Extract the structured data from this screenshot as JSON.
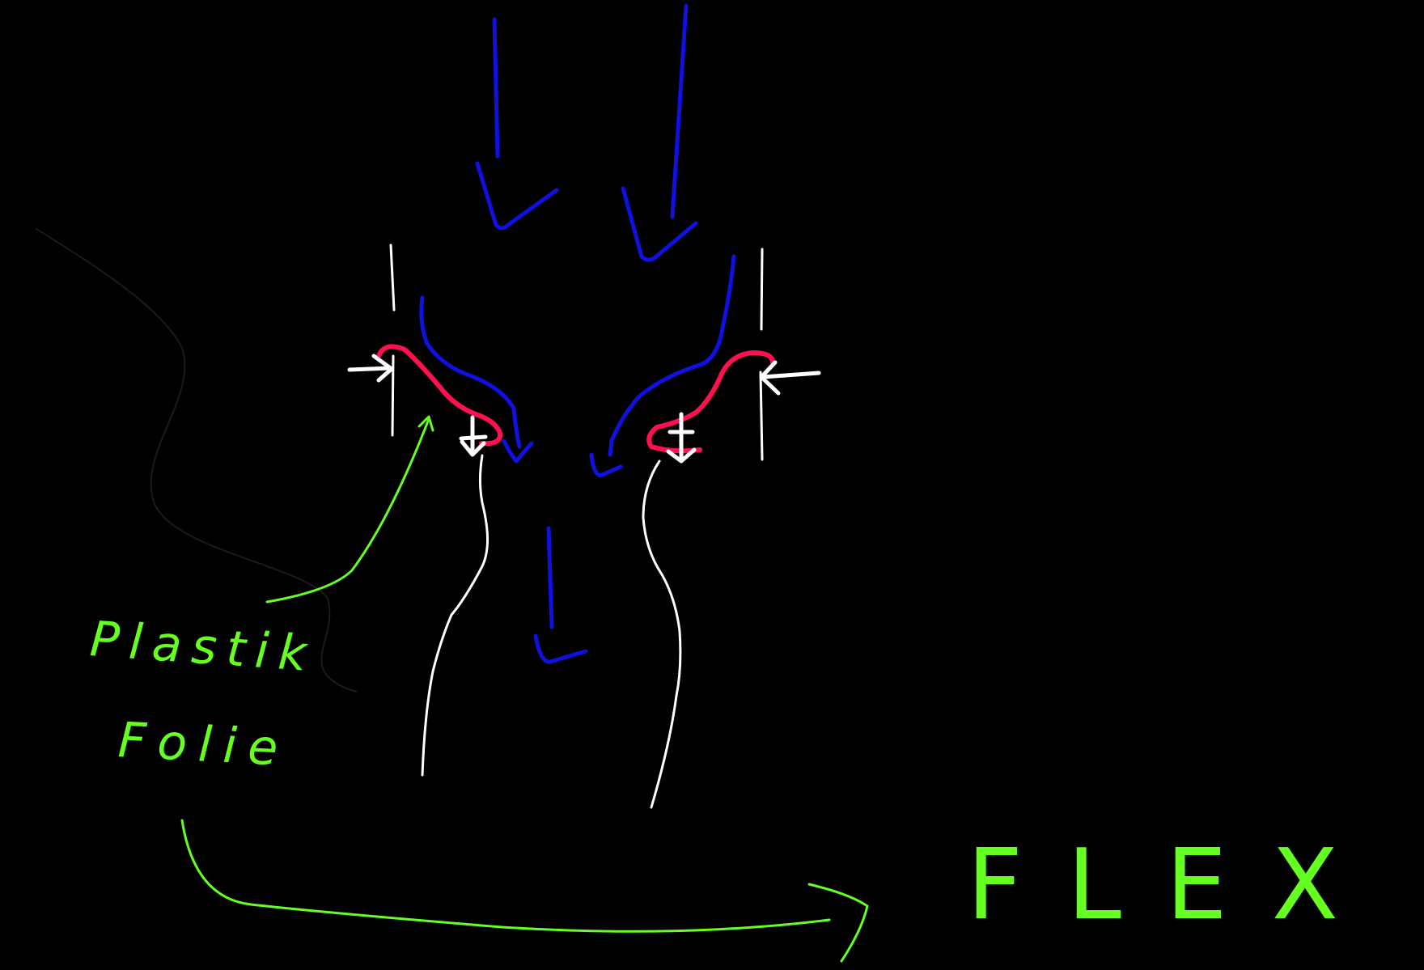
{
  "colors": {
    "background": "#000000",
    "flow_arrows": "#1010e0",
    "outer_walls": "#ffffff",
    "seal": "#ff1050",
    "force_arrows": "#ffffff",
    "annotation": "#66ff22"
  },
  "labels": {
    "material_line1": "Plastik",
    "material_line2": "Folie",
    "result": "FLEX"
  }
}
